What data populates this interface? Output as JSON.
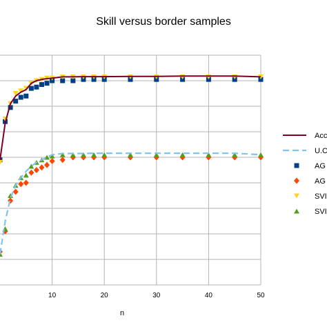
{
  "chart_data": {
    "type": "scatter",
    "title": "Skill versus border samples",
    "xlabel": "n",
    "ylabel": "",
    "xlim": [
      0,
      50
    ],
    "ylim": [
      0.3,
      1.2
    ],
    "x_ticks": [
      10,
      20,
      30,
      40,
      50
    ],
    "grid": true,
    "legend_placement": "right",
    "series": [
      {
        "name": "Acc",
        "style": "line",
        "color": "#7a0020",
        "x": [
          0,
          1,
          2,
          3,
          4,
          5,
          6,
          7,
          8,
          9,
          10,
          12,
          14,
          16,
          18,
          20,
          25,
          30,
          35,
          40,
          45,
          50
        ],
        "y": [
          0.79,
          0.935,
          1.01,
          1.04,
          1.055,
          1.065,
          1.09,
          1.1,
          1.105,
          1.108,
          1.11,
          1.115,
          1.115,
          1.116,
          1.116,
          1.116,
          1.117,
          1.117,
          1.118,
          1.118,
          1.118,
          1.115
        ]
      },
      {
        "name": "U.C",
        "style": "dashed",
        "color": "#7fc4ec",
        "x": [
          0,
          1,
          2,
          3,
          4,
          5,
          6,
          7,
          8,
          9,
          10,
          12,
          14,
          16,
          18,
          20,
          25,
          30,
          35,
          40,
          45,
          50
        ],
        "y": [
          0.42,
          0.55,
          0.64,
          0.69,
          0.72,
          0.745,
          0.765,
          0.78,
          0.79,
          0.8,
          0.81,
          0.815,
          0.815,
          0.815,
          0.816,
          0.816,
          0.816,
          0.816,
          0.816,
          0.816,
          0.816,
          0.81
        ]
      },
      {
        "name": "AG",
        "style": "square",
        "color": "#003f86",
        "x": [
          0,
          1,
          2,
          3,
          4,
          5,
          6,
          7,
          8,
          9,
          10,
          12,
          14,
          16,
          18,
          20,
          25,
          30,
          35,
          40,
          45,
          50
        ],
        "y": [
          0.79,
          0.94,
          0.995,
          1.02,
          1.035,
          1.04,
          1.07,
          1.075,
          1.085,
          1.09,
          1.1,
          1.1,
          1.1,
          1.105,
          1.105,
          1.105,
          1.105,
          1.105,
          1.105,
          1.105,
          1.105,
          1.105
        ]
      },
      {
        "name": "AG",
        "style": "diamond",
        "color": "#ff4500",
        "x": [
          0,
          1,
          2,
          3,
          4,
          5,
          6,
          7,
          8,
          9,
          10,
          12,
          14,
          16,
          18,
          20,
          25,
          30,
          35,
          40,
          45,
          50
        ],
        "y": [
          0.43,
          0.51,
          0.63,
          0.665,
          0.695,
          0.7,
          0.74,
          0.75,
          0.76,
          0.77,
          0.785,
          0.79,
          0.8,
          0.8,
          0.8,
          0.8,
          0.8,
          0.8,
          0.8,
          0.8,
          0.8,
          0.8
        ]
      },
      {
        "name": "SVI",
        "style": "triangle-down",
        "color": "#ffd320",
        "x": [
          0,
          1,
          2,
          3,
          4,
          5,
          6,
          7,
          8,
          9,
          10,
          12,
          14,
          16,
          18,
          20,
          25,
          30,
          35,
          40,
          45,
          50
        ],
        "y": [
          0.78,
          0.95,
          1.01,
          1.05,
          1.06,
          1.07,
          1.09,
          1.1,
          1.105,
          1.11,
          1.11,
          1.115,
          1.115,
          1.115,
          1.115,
          1.115,
          1.115,
          1.115,
          1.115,
          1.115,
          1.115,
          1.115
        ]
      },
      {
        "name": "SVI",
        "style": "triangle-up",
        "color": "#579d1c",
        "x": [
          0,
          1,
          2,
          3,
          4,
          5,
          6,
          7,
          8,
          9,
          10,
          12,
          14,
          16,
          18,
          20,
          25,
          30,
          35,
          40,
          45,
          50
        ],
        "y": [
          0.42,
          0.52,
          0.65,
          0.69,
          0.72,
          0.73,
          0.765,
          0.78,
          0.79,
          0.8,
          0.805,
          0.81,
          0.81,
          0.81,
          0.81,
          0.81,
          0.81,
          0.81,
          0.81,
          0.81,
          0.81,
          0.81
        ]
      }
    ]
  }
}
